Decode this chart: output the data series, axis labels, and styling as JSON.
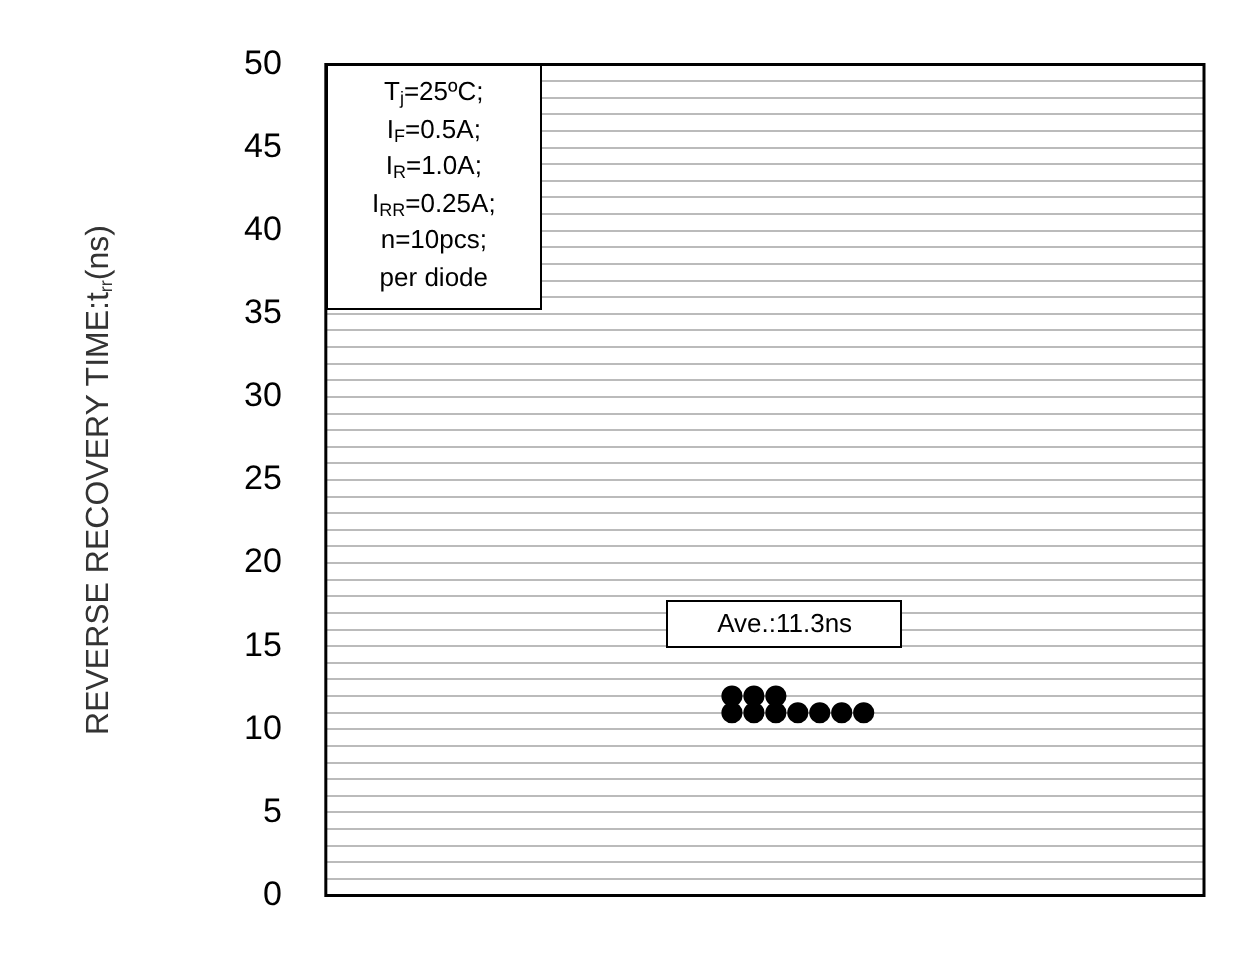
{
  "chart_data": {
    "type": "scatter",
    "ylabel": "REVERSE RECOVERY TIME:t$_{rr}$(ns)",
    "categories": [
      null,
      null,
      null,
      null,
      null,
      null,
      null,
      null,
      null,
      null,
      null,
      null,
      null,
      null,
      null,
      null,
      null,
      null,
      null,
      null,
      null,
      null,
      null,
      null,
      null,
      null,
      null,
      null,
      null,
      null,
      null,
      null,
      null,
      null,
      null,
      null,
      null,
      null,
      null,
      null
    ],
    "series": [
      {
        "color": "#000000",
        "values": [
          null,
          null,
          null,
          null,
          null,
          null,
          null,
          null,
          null,
          null,
          null,
          null,
          null,
          null,
          null,
          null,
          null,
          null,
          12,
          12,
          12,
          null,
          null,
          null,
          null,
          null,
          null,
          null,
          null,
          null,
          null,
          null,
          null,
          null,
          null,
          null,
          null,
          null,
          null,
          null
        ]
      },
      {
        "color": "#000000",
        "values": [
          null,
          null,
          null,
          null,
          null,
          null,
          null,
          null,
          null,
          null,
          null,
          null,
          null,
          null,
          null,
          null,
          null,
          null,
          11,
          11,
          11,
          11,
          11,
          11,
          11,
          null,
          null,
          null,
          null,
          null,
          null,
          null,
          null,
          null,
          null,
          null,
          null,
          null,
          null,
          null
        ]
      }
    ],
    "ylim": [
      0,
      50
    ],
    "yticks": [
      0,
      {
        "value": 1,
        "label": null
      },
      {
        "value": 2,
        "label": null
      },
      {
        "value": 3,
        "label": null
      },
      {
        "value": 4,
        "label": null
      },
      5,
      {
        "value": 6,
        "label": null
      },
      {
        "value": 7,
        "label": null
      },
      {
        "value": 8,
        "label": null
      },
      {
        "value": 9,
        "label": null
      },
      10,
      {
        "value": 11,
        "label": null
      },
      {
        "value": 12,
        "label": null
      },
      {
        "value": 13,
        "label": null
      },
      {
        "value": 14,
        "label": null
      },
      15,
      {
        "value": 16,
        "label": null
      },
      {
        "value": 17,
        "label": null
      },
      {
        "value": 18,
        "label": null
      },
      {
        "value": 19,
        "label": null
      },
      20,
      {
        "value": 21,
        "label": null
      },
      {
        "value": 22,
        "label": null
      },
      {
        "value": 23,
        "label": null
      },
      {
        "value": 24,
        "label": null
      },
      25,
      {
        "value": 26,
        "label": null
      },
      {
        "value": 27,
        "label": null
      },
      {
        "value": 28,
        "label": null
      },
      {
        "value": 29,
        "label": null
      },
      30,
      {
        "value": 31,
        "label": null
      },
      {
        "value": 32,
        "label": null
      },
      {
        "value": 33,
        "label": null
      },
      {
        "value": 34,
        "label": null
      },
      35,
      {
        "value": 36,
        "label": null
      },
      {
        "value": 37,
        "label": null
      },
      {
        "value": 38,
        "label": null
      },
      {
        "value": 39,
        "label": null
      },
      40,
      {
        "value": 41,
        "label": null
      },
      {
        "value": 42,
        "label": null
      },
      {
        "value": 43,
        "label": null
      },
      {
        "value": 44,
        "label": null
      },
      45,
      {
        "value": 46,
        "label": null
      },
      {
        "value": 47,
        "label": null
      },
      {
        "value": 48,
        "label": null
      },
      {
        "value": 49,
        "label": null
      },
      50
    ],
    "grid": "y",
    "legend": false,
    "marker": "circle",
    "tick_labels": "y",
    "annotations": [
      "T$_{j}$=25ºC;\nI$_{F}$=0.5A;\nI$_{R}$=1.0A;\nI$_{RR}$=0.25A;\nn=10pcs;\nper diode",
      "Ave.:11.3ns"
    ]
  }
}
